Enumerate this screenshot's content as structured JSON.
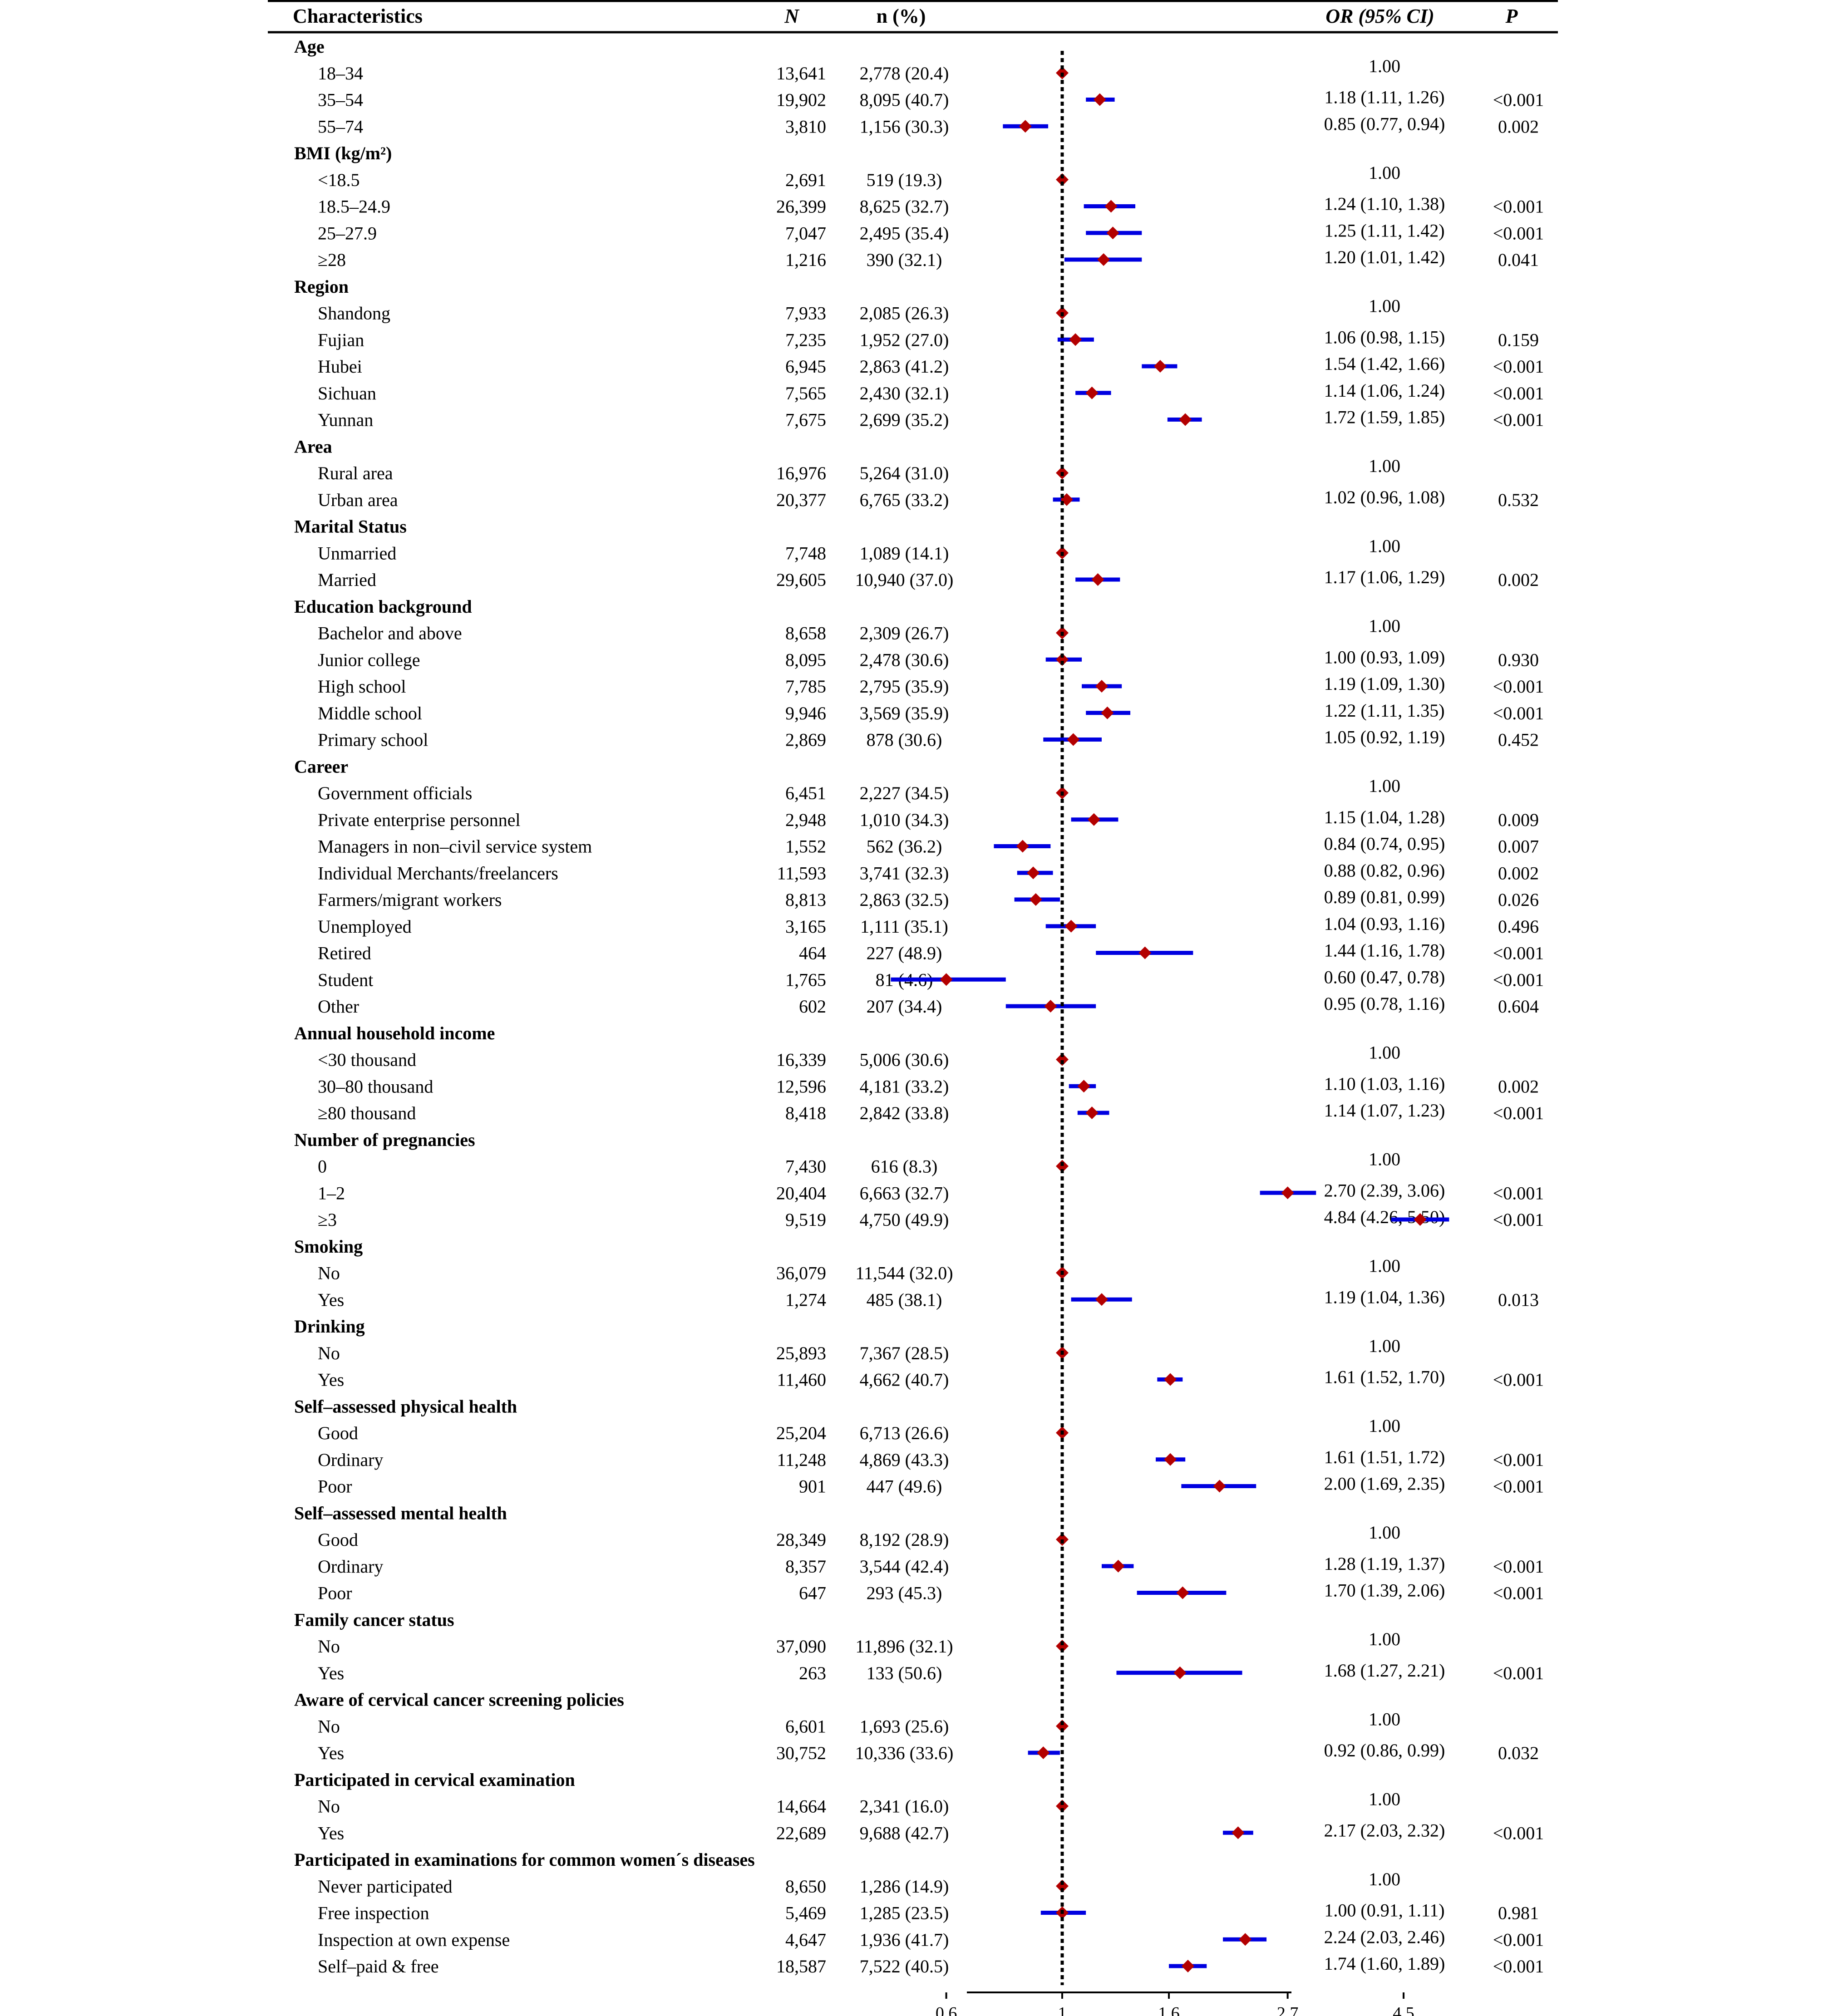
{
  "headers": {
    "characteristics": "Characteristics",
    "N": "N",
    "n_pct": "n (%)",
    "or_ci": "OR (95% CI)",
    "p": "P"
  },
  "chart_data": {
    "type": "forest",
    "reference_value": 1,
    "x_scale": "log",
    "xlim": [
      0.5,
      5.0
    ],
    "x_ticks": [
      0.6,
      1,
      1.6,
      2.7,
      4.5
    ],
    "x_tick_labels": [
      "0.6",
      "1",
      "1.6",
      "2.7",
      "4.5"
    ],
    "reference_line": "dotted",
    "marker": "diamond",
    "colors": {
      "point": "#b30000",
      "ci": "#0000e0",
      "reference": "#000000"
    },
    "groups": [
      {
        "name": "Age",
        "rows": [
          {
            "label": "18–34",
            "N": "13,641",
            "n": "2,778 (20.4)",
            "or_text": "1.00",
            "p": "",
            "or": 1.0,
            "lo": 1.0,
            "hi": 1.0
          },
          {
            "label": "35–54",
            "N": "19,902",
            "n": "8,095 (40.7)",
            "or_text": "1.18 (1.11, 1.26)",
            "p": "<0.001",
            "or": 1.18,
            "lo": 1.11,
            "hi": 1.26
          },
          {
            "label": "55–74",
            "N": "3,810",
            "n": "1,156 (30.3)",
            "or_text": "0.85 (0.77, 0.94)",
            "p": "0.002",
            "or": 0.85,
            "lo": 0.77,
            "hi": 0.94
          }
        ]
      },
      {
        "name": "BMI (kg/m²)",
        "rows": [
          {
            "label": "<18.5",
            "N": "2,691",
            "n": "519 (19.3)",
            "or_text": "1.00",
            "p": "",
            "or": 1.0,
            "lo": 1.0,
            "hi": 1.0
          },
          {
            "label": "18.5–24.9",
            "N": "26,399",
            "n": "8,625 (32.7)",
            "or_text": "1.24 (1.10, 1.38)",
            "p": "<0.001",
            "or": 1.24,
            "lo": 1.1,
            "hi": 1.38
          },
          {
            "label": "25–27.9",
            "N": "7,047",
            "n": "2,495 (35.4)",
            "or_text": "1.25 (1.11, 1.42)",
            "p": "<0.001",
            "or": 1.25,
            "lo": 1.11,
            "hi": 1.42
          },
          {
            "label": "≥28",
            "N": "1,216",
            "n": "390 (32.1)",
            "or_text": "1.20 (1.01, 1.42)",
            "p": "0.041",
            "or": 1.2,
            "lo": 1.01,
            "hi": 1.42
          }
        ]
      },
      {
        "name": "Region",
        "rows": [
          {
            "label": "Shandong",
            "N": "7,933",
            "n": "2,085 (26.3)",
            "or_text": "1.00",
            "p": "",
            "or": 1.0,
            "lo": 1.0,
            "hi": 1.0
          },
          {
            "label": "Fujian",
            "N": "7,235",
            "n": "1,952 (27.0)",
            "or_text": "1.06 (0.98, 1.15)",
            "p": "0.159",
            "or": 1.06,
            "lo": 0.98,
            "hi": 1.15
          },
          {
            "label": "Hubei",
            "N": "6,945",
            "n": "2,863 (41.2)",
            "or_text": "1.54 (1.42, 1.66)",
            "p": "<0.001",
            "or": 1.54,
            "lo": 1.42,
            "hi": 1.66
          },
          {
            "label": "Sichuan",
            "N": "7,565",
            "n": "2,430 (32.1)",
            "or_text": "1.14 (1.06, 1.24)",
            "p": "<0.001",
            "or": 1.14,
            "lo": 1.06,
            "hi": 1.24
          },
          {
            "label": "Yunnan",
            "N": "7,675",
            "n": "2,699 (35.2)",
            "or_text": "1.72 (1.59, 1.85)",
            "p": "<0.001",
            "or": 1.72,
            "lo": 1.59,
            "hi": 1.85
          }
        ]
      },
      {
        "name": "Area",
        "rows": [
          {
            "label": "Rural area",
            "N": "16,976",
            "n": "5,264 (31.0)",
            "or_text": "1.00",
            "p": "",
            "or": 1.0,
            "lo": 1.0,
            "hi": 1.0
          },
          {
            "label": "Urban area",
            "N": "20,377",
            "n": "6,765 (33.2)",
            "or_text": "1.02 (0.96, 1.08)",
            "p": "0.532",
            "or": 1.02,
            "lo": 0.96,
            "hi": 1.08
          }
        ]
      },
      {
        "name": "Marital Status",
        "rows": [
          {
            "label": "Unmarried",
            "N": "7,748",
            "n": "1,089 (14.1)",
            "or_text": "1.00",
            "p": "",
            "or": 1.0,
            "lo": 1.0,
            "hi": 1.0
          },
          {
            "label": "Married",
            "N": "29,605",
            "n": "10,940 (37.0)",
            "or_text": "1.17 (1.06, 1.29)",
            "p": "0.002",
            "or": 1.17,
            "lo": 1.06,
            "hi": 1.29
          }
        ]
      },
      {
        "name": "Education background",
        "rows": [
          {
            "label": "Bachelor and above",
            "N": "8,658",
            "n": "2,309 (26.7)",
            "or_text": "1.00",
            "p": "",
            "or": 1.0,
            "lo": 1.0,
            "hi": 1.0
          },
          {
            "label": "Junior college",
            "N": "8,095",
            "n": "2,478 (30.6)",
            "or_text": "1.00 (0.93, 1.09)",
            "p": "0.930",
            "or": 1.0,
            "lo": 0.93,
            "hi": 1.09
          },
          {
            "label": "High school",
            "N": "7,785",
            "n": "2,795 (35.9)",
            "or_text": "1.19 (1.09, 1.30)",
            "p": "<0.001",
            "or": 1.19,
            "lo": 1.09,
            "hi": 1.3
          },
          {
            "label": "Middle school",
            "N": "9,946",
            "n": "3,569 (35.9)",
            "or_text": "1.22 (1.11, 1.35)",
            "p": "<0.001",
            "or": 1.22,
            "lo": 1.11,
            "hi": 1.35
          },
          {
            "label": "Primary school",
            "N": "2,869",
            "n": "878 (30.6)",
            "or_text": "1.05 (0.92, 1.19)",
            "p": "0.452",
            "or": 1.05,
            "lo": 0.92,
            "hi": 1.19
          }
        ]
      },
      {
        "name": "Career",
        "rows": [
          {
            "label": "Government officials",
            "N": "6,451",
            "n": "2,227 (34.5)",
            "or_text": "1.00",
            "p": "",
            "or": 1.0,
            "lo": 1.0,
            "hi": 1.0
          },
          {
            "label": "Private enterprise personnel",
            "N": "2,948",
            "n": "1,010 (34.3)",
            "or_text": "1.15 (1.04, 1.28)",
            "p": "0.009",
            "or": 1.15,
            "lo": 1.04,
            "hi": 1.28
          },
          {
            "label": "Managers in non–civil service system",
            "N": "1,552",
            "n": "562 (36.2)",
            "or_text": "0.84 (0.74, 0.95)",
            "p": "0.007",
            "or": 0.84,
            "lo": 0.74,
            "hi": 0.95
          },
          {
            "label": "Individual Merchants/freelancers",
            "N": "11,593",
            "n": "3,741 (32.3)",
            "or_text": "0.88 (0.82, 0.96)",
            "p": "0.002",
            "or": 0.88,
            "lo": 0.82,
            "hi": 0.96
          },
          {
            "label": "Farmers/migrant workers",
            "N": "8,813",
            "n": "2,863 (32.5)",
            "or_text": "0.89 (0.81, 0.99)",
            "p": "0.026",
            "or": 0.89,
            "lo": 0.81,
            "hi": 0.99
          },
          {
            "label": "Unemployed",
            "N": "3,165",
            "n": "1,111 (35.1)",
            "or_text": "1.04 (0.93, 1.16)",
            "p": "0.496",
            "or": 1.04,
            "lo": 0.93,
            "hi": 1.16
          },
          {
            "label": "Retired",
            "N": "464",
            "n": "227 (48.9)",
            "or_text": "1.44 (1.16, 1.78)",
            "p": "<0.001",
            "or": 1.44,
            "lo": 1.16,
            "hi": 1.78
          },
          {
            "label": "Student",
            "N": "1,765",
            "n": "81 (4.6)",
            "or_text": "0.60 (0.47, 0.78)",
            "p": "<0.001",
            "or": 0.6,
            "lo": 0.47,
            "hi": 0.78
          },
          {
            "label": "Other",
            "N": "602",
            "n": "207 (34.4)",
            "or_text": "0.95 (0.78, 1.16)",
            "p": "0.604",
            "or": 0.95,
            "lo": 0.78,
            "hi": 1.16
          }
        ]
      },
      {
        "name": "Annual household income",
        "rows": [
          {
            "label": "<30 thousand",
            "N": "16,339",
            "n": "5,006 (30.6)",
            "or_text": "1.00",
            "p": "",
            "or": 1.0,
            "lo": 1.0,
            "hi": 1.0
          },
          {
            "label": "30–80 thousand",
            "N": "12,596",
            "n": "4,181 (33.2)",
            "or_text": "1.10 (1.03, 1.16)",
            "p": "0.002",
            "or": 1.1,
            "lo": 1.03,
            "hi": 1.16
          },
          {
            "label": "≥80 thousand",
            "N": "8,418",
            "n": "2,842 (33.8)",
            "or_text": "1.14 (1.07, 1.23)",
            "p": "<0.001",
            "or": 1.14,
            "lo": 1.07,
            "hi": 1.23
          }
        ]
      },
      {
        "name": "Number of pregnancies",
        "rows": [
          {
            "label": "0",
            "N": "7,430",
            "n": "616 (8.3)",
            "or_text": "1.00",
            "p": "",
            "or": 1.0,
            "lo": 1.0,
            "hi": 1.0
          },
          {
            "label": "1–2",
            "N": "20,404",
            "n": "6,663 (32.7)",
            "or_text": "2.70 (2.39, 3.06)",
            "p": "<0.001",
            "or": 2.7,
            "lo": 2.39,
            "hi": 3.06
          },
          {
            "label": "≥3",
            "N": "9,519",
            "n": "4,750 (49.9)",
            "or_text": "4.84 (4.26, 5.50)",
            "p": "<0.001",
            "or": 4.84,
            "lo": 4.26,
            "hi": 5.5
          }
        ]
      },
      {
        "name": "Smoking",
        "rows": [
          {
            "label": "No",
            "N": "36,079",
            "n": "11,544 (32.0)",
            "or_text": "1.00",
            "p": "",
            "or": 1.0,
            "lo": 1.0,
            "hi": 1.0
          },
          {
            "label": "Yes",
            "N": "1,274",
            "n": "485 (38.1)",
            "or_text": "1.19 (1.04, 1.36)",
            "p": "0.013",
            "or": 1.19,
            "lo": 1.04,
            "hi": 1.36
          }
        ]
      },
      {
        "name": "Drinking",
        "rows": [
          {
            "label": "No",
            "N": "25,893",
            "n": "7,367 (28.5)",
            "or_text": "1.00",
            "p": "",
            "or": 1.0,
            "lo": 1.0,
            "hi": 1.0
          },
          {
            "label": "Yes",
            "N": "11,460",
            "n": "4,662 (40.7)",
            "or_text": "1.61 (1.52, 1.70)",
            "p": "<0.001",
            "or": 1.61,
            "lo": 1.52,
            "hi": 1.7
          }
        ]
      },
      {
        "name": "Self–assessed physical health",
        "rows": [
          {
            "label": "Good",
            "N": "25,204",
            "n": "6,713 (26.6)",
            "or_text": "1.00",
            "p": "",
            "or": 1.0,
            "lo": 1.0,
            "hi": 1.0
          },
          {
            "label": "Ordinary",
            "N": "11,248",
            "n": "4,869 (43.3)",
            "or_text": "1.61 (1.51, 1.72)",
            "p": "<0.001",
            "or": 1.61,
            "lo": 1.51,
            "hi": 1.72
          },
          {
            "label": "Poor",
            "N": "901",
            "n": "447 (49.6)",
            "or_text": "2.00 (1.69, 2.35)",
            "p": "<0.001",
            "or": 2.0,
            "lo": 1.69,
            "hi": 2.35
          }
        ]
      },
      {
        "name": "Self–assessed mental health",
        "rows": [
          {
            "label": "Good",
            "N": "28,349",
            "n": "8,192 (28.9)",
            "or_text": "1.00",
            "p": "",
            "or": 1.0,
            "lo": 1.0,
            "hi": 1.0
          },
          {
            "label": "Ordinary",
            "N": "8,357",
            "n": "3,544 (42.4)",
            "or_text": "1.28 (1.19, 1.37)",
            "p": "<0.001",
            "or": 1.28,
            "lo": 1.19,
            "hi": 1.37
          },
          {
            "label": "Poor",
            "N": "647",
            "n": "293 (45.3)",
            "or_text": "1.70 (1.39, 2.06)",
            "p": "<0.001",
            "or": 1.7,
            "lo": 1.39,
            "hi": 2.06
          }
        ]
      },
      {
        "name": "Family cancer status",
        "rows": [
          {
            "label": "No",
            "N": "37,090",
            "n": "11,896 (32.1)",
            "or_text": "1.00",
            "p": "",
            "or": 1.0,
            "lo": 1.0,
            "hi": 1.0
          },
          {
            "label": "Yes",
            "N": "263",
            "n": "133 (50.6)",
            "or_text": "1.68 (1.27, 2.21)",
            "p": "<0.001",
            "or": 1.68,
            "lo": 1.27,
            "hi": 2.21
          }
        ]
      },
      {
        "name": "Aware of cervical cancer screening policies",
        "rows": [
          {
            "label": "No",
            "N": "6,601",
            "n": "1,693 (25.6)",
            "or_text": "1.00",
            "p": "",
            "or": 1.0,
            "lo": 1.0,
            "hi": 1.0
          },
          {
            "label": "Yes",
            "N": "30,752",
            "n": "10,336 (33.6)",
            "or_text": "0.92 (0.86, 0.99)",
            "p": "0.032",
            "or": 0.92,
            "lo": 0.86,
            "hi": 0.99
          }
        ]
      },
      {
        "name": "Participated in cervical examination",
        "rows": [
          {
            "label": "No",
            "N": "14,664",
            "n": "2,341 (16.0)",
            "or_text": "1.00",
            "p": "",
            "or": 1.0,
            "lo": 1.0,
            "hi": 1.0
          },
          {
            "label": "Yes",
            "N": "22,689",
            "n": "9,688 (42.7)",
            "or_text": "2.17 (2.03, 2.32)",
            "p": "<0.001",
            "or": 2.17,
            "lo": 2.03,
            "hi": 2.32
          }
        ]
      },
      {
        "name": "Participated in examinations for common women´s diseases",
        "rows": [
          {
            "label": "Never participated",
            "N": "8,650",
            "n": "1,286 (14.9)",
            "or_text": "1.00",
            "p": "",
            "or": 1.0,
            "lo": 1.0,
            "hi": 1.0
          },
          {
            "label": "Free inspection",
            "N": "5,469",
            "n": "1,285 (23.5)",
            "or_text": "1.00 (0.91, 1.11)",
            "p": "0.981",
            "or": 1.0,
            "lo": 0.91,
            "hi": 1.11
          },
          {
            "label": "Inspection at own expense",
            "N": "4,647",
            "n": "1,936 (41.7)",
            "or_text": "2.24 (2.03, 2.46)",
            "p": "<0.001",
            "or": 2.24,
            "lo": 2.03,
            "hi": 2.46
          },
          {
            "label": "Self–paid & free",
            "N": "18,587",
            "n": "7,522 (40.5)",
            "or_text": "1.74 (1.60, 1.89)",
            "p": "<0.001",
            "or": 1.74,
            "lo": 1.6,
            "hi": 1.89
          }
        ]
      }
    ]
  }
}
